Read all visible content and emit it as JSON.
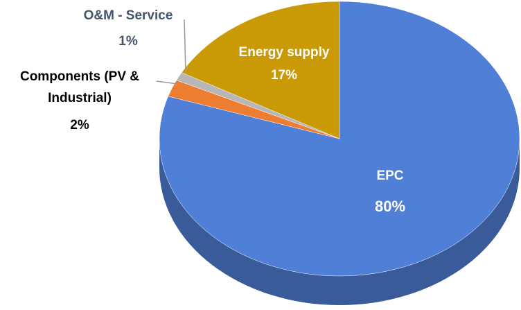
{
  "chart_data": {
    "type": "pie",
    "categories": [
      "EPC",
      "Components (PV & Industrial)",
      "O&M - Service",
      "Energy supply"
    ],
    "values": [
      80,
      2,
      1,
      17
    ],
    "value_labels": [
      "80%",
      "2%",
      "1%",
      "17%"
    ],
    "colors": [
      "#4f7fd6",
      "#ed7d31",
      "#b7b7b7",
      "#c99a06"
    ]
  }
}
